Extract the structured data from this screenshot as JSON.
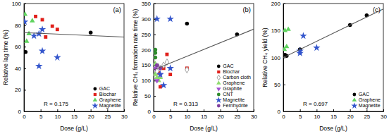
{
  "chart_data": [
    {
      "type": "scatter",
      "x_label": "Dose (g/L)",
      "y_label": "Relative lag time (%)",
      "annotations": [
        "(a)",
        "R = 0.175"
      ],
      "xlim": [
        0,
        30
      ],
      "xticks": [
        0,
        5,
        10,
        15,
        20,
        25,
        30
      ],
      "ylim": [
        0,
        100
      ],
      "yticks": [
        0,
        20,
        40,
        60,
        80,
        100
      ],
      "grid": false,
      "legend": "lower right",
      "series": [
        {
          "name": "GAC",
          "color": "#000000",
          "marker": "circle",
          "x": [
            0.5,
            20
          ],
          "values": [
            55,
            73
          ]
        },
        {
          "name": "Biochar",
          "color": "#e0201b",
          "marker": "square",
          "x": [
            3.5,
            5.5,
            6.5,
            8.5,
            10
          ],
          "values": [
            88,
            85,
            69,
            79,
            76
          ]
        },
        {
          "name": "Graphene",
          "color": "#5fd35f",
          "marker": "triangle",
          "x": [
            0.3,
            0.8,
            1.5,
            2.5
          ],
          "values": [
            90,
            65,
            72,
            84
          ]
        },
        {
          "name": "Magnetite",
          "color": "#3355cc",
          "marker": "star",
          "x": [
            0.2,
            3,
            4.5,
            4.5,
            5.5,
            5.5,
            10
          ],
          "values": [
            83,
            70,
            72,
            42,
            56,
            76,
            50
          ]
        },
        {
          "type": "line",
          "color": "#555555",
          "line_style": "solid",
          "x": [
            0,
            30
          ],
          "values": [
            73,
            69
          ]
        }
      ]
    },
    {
      "type": "scatter",
      "x_label": "Dose (g/L)",
      "y_label": "Relative CH₄ formation rate time (%)",
      "annotations": [
        "(b)",
        "R = 0.313"
      ],
      "xlim": [
        0,
        30
      ],
      "xticks": [
        0,
        5,
        10,
        15,
        20,
        25,
        30
      ],
      "ylim": [
        0,
        350
      ],
      "yticks": [
        0,
        50,
        100,
        150,
        200,
        250,
        300,
        350
      ],
      "grid": false,
      "legend": "lower right",
      "series": [
        {
          "name": "GAC",
          "color": "#000000",
          "marker": "circle",
          "x": [
            10,
            25,
            1
          ],
          "values": [
            285,
            250,
            150
          ]
        },
        {
          "name": "Biochar",
          "color": "#e0201b",
          "marker": "square",
          "x": [
            4,
            5,
            1.5,
            2,
            3,
            10
          ],
          "values": [
            185,
            120,
            125,
            80,
            140,
            140
          ]
        },
        {
          "name": "Carbon cloth",
          "color": "#999999",
          "marker": "diamond-open",
          "x": [
            1,
            2,
            3,
            4,
            10
          ],
          "values": [
            130,
            140,
            150,
            160,
            135
          ]
        },
        {
          "name": "Graphene",
          "color": "#8fdc6f",
          "marker": "triangle",
          "x": [
            0.5,
            1,
            1.5,
            2,
            0.5
          ],
          "values": [
            120,
            110,
            100,
            110,
            155
          ]
        },
        {
          "name": "Graphite",
          "color": "#a04fd0",
          "marker": "triangle-down",
          "x": [
            0.5,
            1,
            2
          ],
          "values": [
            140,
            100,
            120
          ]
        },
        {
          "name": "CNT",
          "color": "#2e8b2e",
          "marker": "circle",
          "x": [
            0.5,
            0.5,
            0.5
          ],
          "values": [
            200,
            190,
            175
          ]
        },
        {
          "name": "Magnetite",
          "color": "#3355cc",
          "marker": "star",
          "x": [
            1,
            5,
            2,
            3,
            5
          ],
          "values": [
            300,
            300,
            120,
            85,
            140
          ]
        },
        {
          "name": "Ferrihydrite",
          "color": "#8040a0",
          "marker": "circle",
          "x": [
            1,
            2
          ],
          "values": [
            150,
            140
          ]
        },
        {
          "type": "line",
          "color": "#555555",
          "line_style": "solid",
          "x": [
            0,
            30
          ],
          "values": [
            135,
            267
          ]
        }
      ]
    },
    {
      "type": "scatter",
      "x_label": "Dose (g/L)",
      "y_label": "Relative CH₄ yield (%)",
      "annotations": [
        "(c)",
        "R = 0.697"
      ],
      "xlim": [
        0,
        30
      ],
      "xticks": [
        0,
        5,
        10,
        15,
        20,
        25,
        30
      ],
      "ylim": [
        0,
        200
      ],
      "yticks": [
        0,
        50,
        100,
        150,
        200
      ],
      "grid": false,
      "legend": "lower right",
      "series": [
        {
          "name": "GAC",
          "color": "#000000",
          "marker": "circle",
          "x": [
            0.5,
            1,
            5,
            20,
            25
          ],
          "values": [
            105,
            103,
            115,
            160,
            178
          ]
        },
        {
          "name": "Graphene",
          "color": "#5fd35f",
          "marker": "triangle",
          "x": [
            0.3,
            0.5,
            1,
            1.5
          ],
          "values": [
            115,
            150,
            120,
            152
          ]
        },
        {
          "name": "Magnetite",
          "color": "#3355cc",
          "marker": "star",
          "x": [
            5,
            6,
            10,
            5
          ],
          "values": [
            108,
            140,
            118,
            112
          ]
        },
        {
          "type": "line",
          "color": "#555555",
          "line_style": "solid",
          "x": [
            0,
            30
          ],
          "values": [
            100,
            190
          ]
        }
      ]
    }
  ]
}
